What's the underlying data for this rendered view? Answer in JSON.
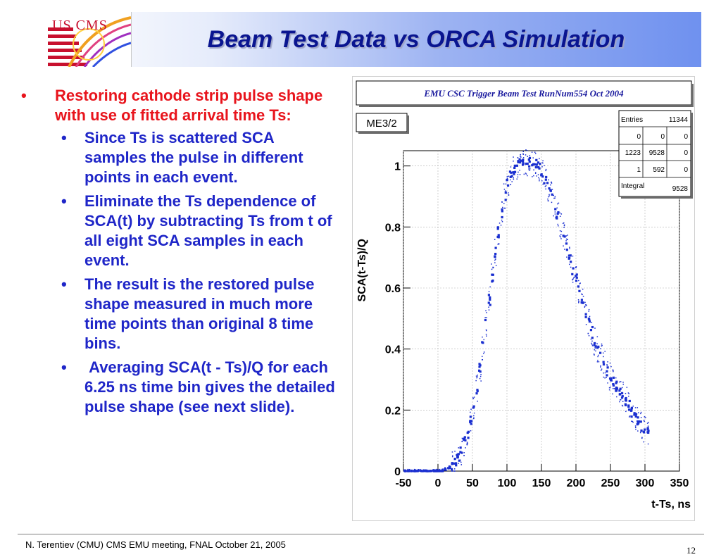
{
  "slide": {
    "title": "Beam Test Data vs ORCA Simulation",
    "logo_text": "US CMS",
    "footer": "N. Terentiev  (CMU)  CMS EMU meeting,  FNAL  October 21, 2005",
    "page_number": "12",
    "colors": {
      "title": "#0a1590",
      "main_bullet": "#e8141c",
      "sub_bullet": "#1f26c8",
      "banner_end": "#6f91ef"
    }
  },
  "bullets": {
    "main": {
      "symbol": "•",
      "text": "Restoring cathode strip pulse shape with use of fitted arrival time Ts:",
      "subs": [
        {
          "symbol": "•",
          "text": "Since Ts is scattered SCA samples the pulse in different points in each event."
        },
        {
          "symbol": "•",
          "text": "Eliminate the Ts dependence of SCA(t) by subtracting Ts from t of all eight SCA samples in each event."
        },
        {
          "symbol": "•",
          "text": "The result is the restored pulse shape measured in much more time points than original 8 time bins."
        },
        {
          "symbol": "•",
          "text": " Averaging SCA(t - Ts)/Q for each 6.25 ns time bin gives the detailed pulse shape (see next slide)."
        }
      ]
    }
  },
  "chart_data": {
    "type": "scatter",
    "title": "EMU CSC Trigger Beam Test RunNum554 Oct 2004",
    "histogram_name": "ME3/2",
    "xlabel": "t-Ts, ns",
    "ylabel": "SCA(t-Ts)/Q",
    "xlim": [
      -50,
      350
    ],
    "ylim": [
      0,
      1.05
    ],
    "x_ticks": [
      "-50",
      "0",
      "50",
      "100",
      "150",
      "200",
      "250",
      "300",
      "350"
    ],
    "y_ticks": [
      "0",
      "0.2",
      "0.4",
      "0.6",
      "0.8",
      "1"
    ],
    "grid": true,
    "stats_box": {
      "entries_label": "Entries",
      "entries_value": "11344",
      "rows": [
        [
          "0",
          "0",
          "0"
        ],
        [
          "1223",
          "9528",
          "0"
        ],
        [
          "1",
          "592",
          "0"
        ]
      ],
      "integral_label": "Integral",
      "integral_value": "9528"
    },
    "profile": [
      {
        "x": -47,
        "y": 0.0
      },
      {
        "x": -30,
        "y": 0.0
      },
      {
        "x": -10,
        "y": 0.0
      },
      {
        "x": 5,
        "y": 0.0
      },
      {
        "x": 15,
        "y": 0.01
      },
      {
        "x": 25,
        "y": 0.03
      },
      {
        "x": 35,
        "y": 0.07
      },
      {
        "x": 45,
        "y": 0.14
      },
      {
        "x": 55,
        "y": 0.25
      },
      {
        "x": 65,
        "y": 0.4
      },
      {
        "x": 75,
        "y": 0.57
      },
      {
        "x": 85,
        "y": 0.74
      },
      {
        "x": 95,
        "y": 0.88
      },
      {
        "x": 105,
        "y": 0.97
      },
      {
        "x": 115,
        "y": 1.0
      },
      {
        "x": 125,
        "y": 1.01
      },
      {
        "x": 135,
        "y": 1.01
      },
      {
        "x": 145,
        "y": 1.0
      },
      {
        "x": 155,
        "y": 0.96
      },
      {
        "x": 165,
        "y": 0.9
      },
      {
        "x": 175,
        "y": 0.83
      },
      {
        "x": 185,
        "y": 0.75
      },
      {
        "x": 195,
        "y": 0.67
      },
      {
        "x": 205,
        "y": 0.59
      },
      {
        "x": 215,
        "y": 0.51
      },
      {
        "x": 225,
        "y": 0.44
      },
      {
        "x": 235,
        "y": 0.38
      },
      {
        "x": 245,
        "y": 0.33
      },
      {
        "x": 255,
        "y": 0.29
      },
      {
        "x": 265,
        "y": 0.26
      },
      {
        "x": 275,
        "y": 0.22
      },
      {
        "x": 285,
        "y": 0.18
      },
      {
        "x": 295,
        "y": 0.15
      },
      {
        "x": 305,
        "y": 0.12
      }
    ],
    "marker_color": "#1a2fd0"
  }
}
